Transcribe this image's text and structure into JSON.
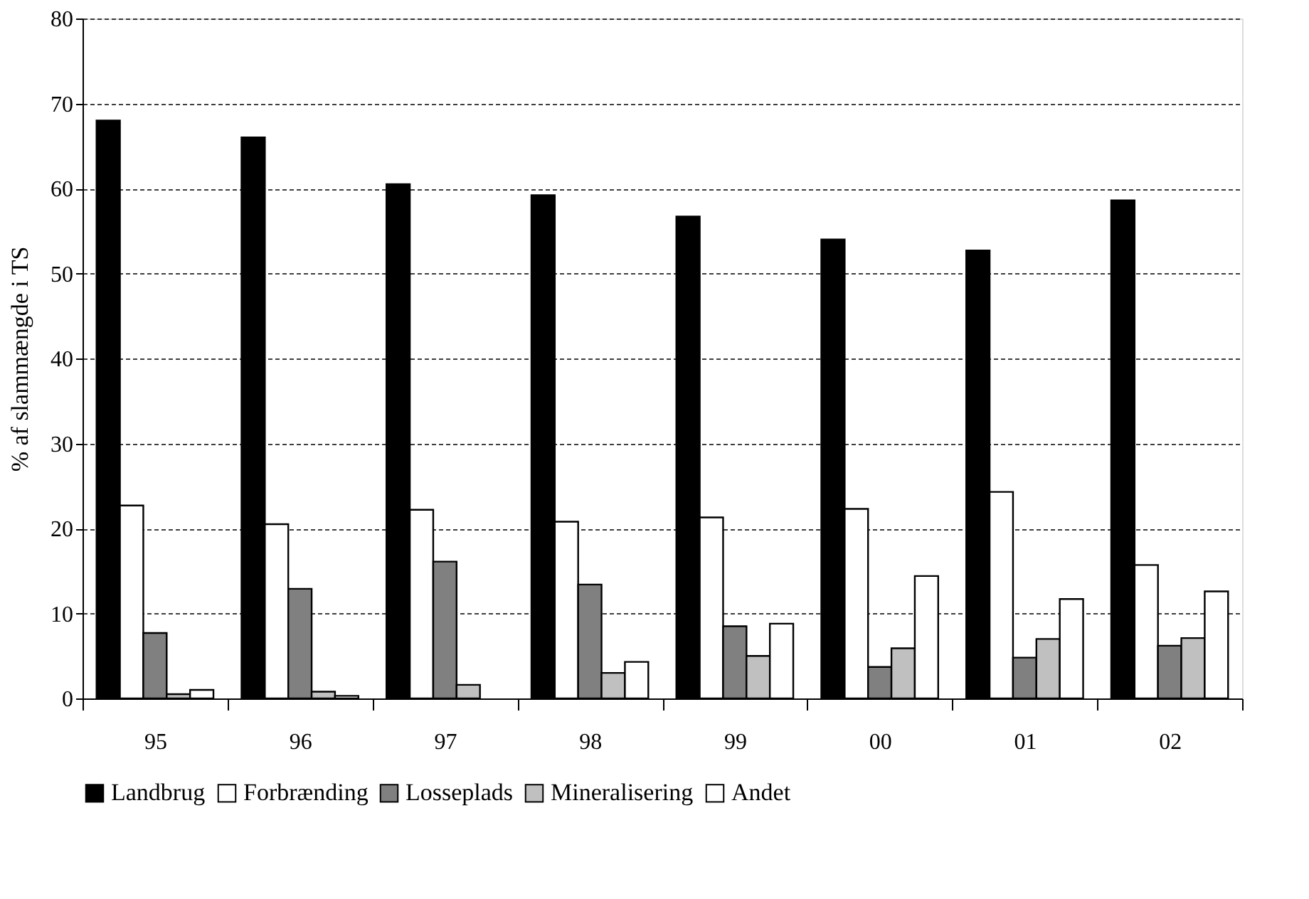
{
  "chart_data": {
    "type": "bar",
    "ylabel": "% af slammængde i TS",
    "categories": [
      "95",
      "96",
      "97",
      "98",
      "99",
      "00",
      "01",
      "02"
    ],
    "series": [
      {
        "name": "Landbrug",
        "color": "#000000",
        "values": [
          68,
          66,
          60.5,
          59.2,
          56.7,
          54,
          52.7,
          58.6
        ]
      },
      {
        "name": "Forbrænding",
        "color": "#ffffff",
        "values": [
          22.7,
          20.5,
          22.2,
          20.8,
          21.3,
          22.3,
          24.3,
          15.7
        ]
      },
      {
        "name": "Losseplads",
        "color": "#808080",
        "values": [
          7.7,
          12.9,
          16.1,
          13.4,
          8.5,
          3.7,
          4.8,
          6.2
        ]
      },
      {
        "name": "Mineralisering",
        "color": "#c0c0c0",
        "values": [
          0.5,
          0.8,
          1.6,
          3.0,
          5.0,
          5.9,
          7.0,
          7.1
        ]
      },
      {
        "name": "Andet",
        "color": "#ffffff",
        "values": [
          1.0,
          0.3,
          null,
          4.3,
          8.8,
          14.4,
          11.7,
          12.6
        ]
      }
    ],
    "ylim": [
      0,
      80
    ],
    "yticks": [
      0,
      10,
      20,
      30,
      40,
      50,
      60,
      70,
      80
    ],
    "grid": "y",
    "legend": "bottom"
  }
}
